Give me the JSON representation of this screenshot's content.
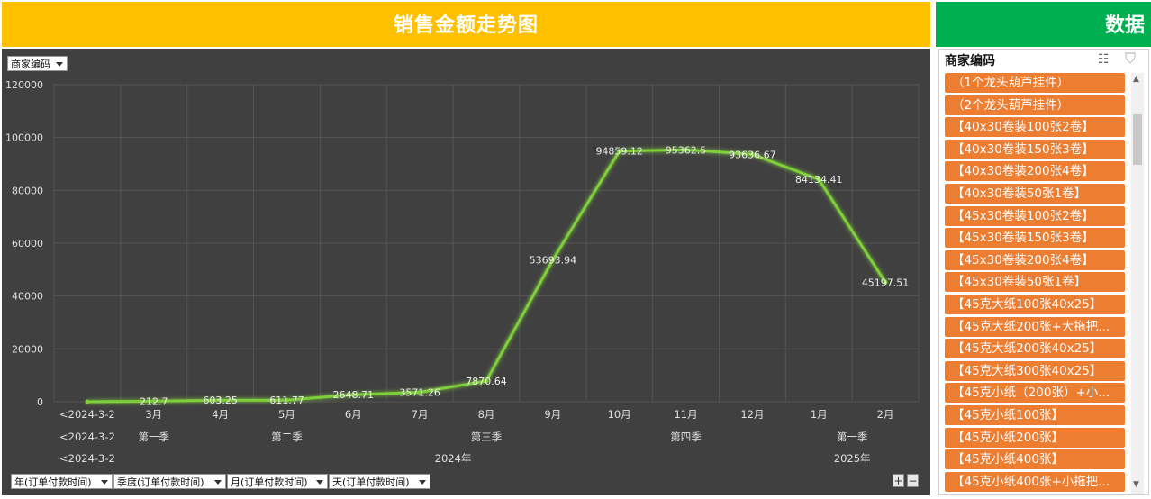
{
  "left": {
    "title": "销售金额走势图",
    "page_field": "商家编码",
    "row_fields": [
      "年(订单付款时间)",
      "季度(订单付款时间)",
      "月(订单付款时间)",
      "天(订单付款时间)"
    ],
    "plus_label": "+",
    "minus_label": "−"
  },
  "chart_data": {
    "type": "line",
    "series": [
      {
        "values": [
          0,
          212.7,
          603.25,
          611.77,
          2648.71,
          3571.26,
          7870.64,
          53693.94,
          94859.12,
          95362.5,
          93636.67,
          84134.41,
          45197.51
        ]
      }
    ],
    "categories": [
      "<2024-3-2",
      "3月",
      "4月",
      "5月",
      "6月",
      "7月",
      "8月",
      "9月",
      "10月",
      "11月",
      "12月",
      "1月",
      "2月"
    ],
    "data_labels": [
      "",
      "212.7",
      "603.25",
      "611.77",
      "2648.71",
      "3571.26",
      "7870.64",
      "53693.94",
      "94859.12",
      "95362.5",
      "93636.67",
      "84134.41",
      "45197.51"
    ],
    "yticks": [
      "120000",
      "100000",
      "80000",
      "60000",
      "40000",
      "20000",
      "0"
    ],
    "ylim": [
      0,
      120000
    ],
    "grid": true,
    "line_color": "#7fcf3a",
    "quarter_labels": [
      {
        "text": "<2024-3-2",
        "from": 0,
        "to": 0
      },
      {
        "text": "第一季",
        "from": 1,
        "to": 1
      },
      {
        "text": "第二季",
        "from": 2,
        "to": 4
      },
      {
        "text": "第三季",
        "from": 5,
        "to": 7
      },
      {
        "text": "第四季",
        "from": 8,
        "to": 10
      },
      {
        "text": "第一季",
        "from": 11,
        "to": 12
      }
    ],
    "year_labels": [
      {
        "text": "<2024-3-2",
        "from": 0,
        "to": 0
      },
      {
        "text": "2024年",
        "from": 1,
        "to": 10
      },
      {
        "text": "2025年",
        "from": 11,
        "to": 12
      }
    ]
  },
  "right": {
    "title": "数据",
    "slicer_header": "商家编码",
    "multi_select_icon": "multi-select-icon",
    "clear_filter_icon": "clear-filter-icon",
    "items": [
      "（1个龙头葫芦挂件）",
      "（2个龙头葫芦挂件）",
      "【40x30卷装100张2卷】",
      "【40x30卷装150张3卷】",
      "【40x30卷装200张4卷】",
      "【40x30卷装50张1卷】",
      "【45x30卷装100张2卷】",
      "【45x30卷装150张3卷】",
      "【45x30卷装200张4卷】",
      "【45x30卷装50张1卷】",
      "【45克大纸100张40x25】",
      "【45克大纸200张+大拖把...",
      "【45克大纸200张40x25】",
      "【45克大纸300张40x25】",
      "【45克小纸（200张）+小...",
      "【45克小纸100张】",
      "【45克小纸200张】",
      "【45克小纸400张】",
      "【45克小纸400张+小拖把..."
    ]
  }
}
